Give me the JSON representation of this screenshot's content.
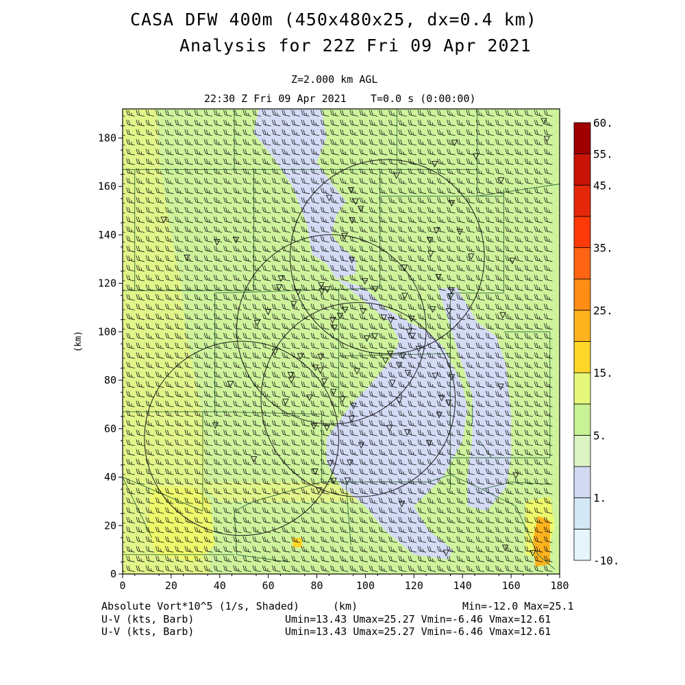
{
  "header": {
    "title_line1": "CASA DFW 400m (450x480x25, dx=0.4 km)",
    "title_line2": "Analysis for 22Z Fri 09 Apr 2021",
    "level": "Z=2.000 km AGL",
    "valid_time": "22:30 Z Fri 09 Apr 2021",
    "forecast_time": "T=0.0 s (0:00:00)"
  },
  "footer": {
    "shaded_field": "Absolute Vort*10^5 (1/s, Shaded)",
    "x_unit": "(km)",
    "min_max": "Min=-12.0 Max=25.1",
    "barb_label_1": "U-V (kts, Barb)",
    "barb_stats_1": "Umin=13.43 Umax=25.27 Vmin=-6.46 Vmax=12.61",
    "barb_label_2": "U-V (kts, Barb)",
    "barb_stats_2": "Umin=13.43 Umax=25.27 Vmin=-6.46 Vmax=12.61"
  },
  "chart_data": {
    "type": "heatmap",
    "field": "Absolute Vort*10^5 (1/s)",
    "xlabel": "(km)",
    "ylabel": "(km)",
    "xlim": [
      0,
      180
    ],
    "ylim": [
      0,
      192
    ],
    "x_ticks": [
      "0",
      "20",
      "40",
      "60",
      "80",
      "100",
      "120",
      "140",
      "160",
      "180"
    ],
    "y_ticks": [
      "0",
      "20",
      "40",
      "60",
      "80",
      "100",
      "120",
      "140",
      "160",
      "180"
    ],
    "color_scale": {
      "labels": [
        "-10.",
        "1.",
        "5.",
        "15.",
        "25.",
        "35.",
        "45.",
        "55.",
        "60."
      ],
      "colors": [
        "#e6f5fb",
        "#d4e8f5",
        "#d2d9f2",
        "#dcf3c4",
        "#c8f296",
        "#e6f87a",
        "#ffd62a",
        "#ffb31e",
        "#ff8c14",
        "#ff6414",
        "#ff3a0a",
        "#e6280a",
        "#c81406",
        "#a00000"
      ]
    },
    "regions": [
      {
        "value": 8,
        "color": "#cef39c",
        "polygon": [
          [
            0,
            0
          ],
          [
            180,
            0
          ],
          [
            180,
            192
          ],
          [
            0,
            192
          ]
        ]
      },
      {
        "value": 12,
        "color": "#e1f58a",
        "polygon": [
          [
            0,
            192
          ],
          [
            0,
            0
          ],
          [
            36,
            0
          ],
          [
            34,
            32
          ],
          [
            34,
            58
          ],
          [
            30,
            80
          ],
          [
            26,
            100
          ],
          [
            24,
            120
          ],
          [
            20,
            140
          ],
          [
            16,
            165
          ],
          [
            14,
            192
          ]
        ]
      },
      {
        "value": 12,
        "color": "#e1f58a",
        "polygon": [
          [
            30,
            38
          ],
          [
            100,
            38
          ],
          [
            100,
            30
          ],
          [
            40,
            30
          ]
        ]
      },
      {
        "value": 16,
        "color": "#eef96c",
        "polygon": [
          [
            12,
            36
          ],
          [
            30,
            36
          ],
          [
            36,
            30
          ],
          [
            38,
            12
          ],
          [
            30,
            5
          ],
          [
            14,
            8
          ],
          [
            10,
            18
          ]
        ]
      },
      {
        "value": 16,
        "color": "#eef96c",
        "polygon": [
          [
            166,
            30
          ],
          [
            176,
            32
          ],
          [
            178,
            20
          ],
          [
            174,
            6
          ],
          [
            166,
            8
          ]
        ]
      },
      {
        "value": 25,
        "color": "#ffb31e",
        "polygon": [
          [
            171,
            24
          ],
          [
            176,
            22
          ],
          [
            176,
            4
          ],
          [
            170,
            3
          ],
          [
            169,
            14
          ]
        ]
      },
      {
        "value": 25,
        "color": "#ffd62a",
        "polygon": [
          [
            70,
            15
          ],
          [
            74,
            15
          ],
          [
            74,
            11
          ],
          [
            70,
            11
          ]
        ]
      },
      {
        "value": 2,
        "color": "#d4dbf5",
        "polygon": [
          [
            56,
            192
          ],
          [
            82,
            192
          ],
          [
            84,
            180
          ],
          [
            80,
            170
          ],
          [
            87,
            160
          ],
          [
            92,
            154
          ],
          [
            88,
            148
          ],
          [
            86,
            140
          ],
          [
            90,
            135
          ],
          [
            96,
            130
          ],
          [
            96,
            124
          ],
          [
            88,
            122
          ],
          [
            84,
            128
          ],
          [
            78,
            132
          ],
          [
            76,
            144
          ],
          [
            70,
            160
          ],
          [
            62,
            172
          ],
          [
            54,
            182
          ]
        ]
      },
      {
        "value": 2,
        "color": "#d4dbf5",
        "polygon": [
          [
            88,
            122
          ],
          [
            100,
            118
          ],
          [
            108,
            110
          ],
          [
            118,
            104
          ],
          [
            126,
            100
          ],
          [
            132,
            94
          ],
          [
            136,
            86
          ],
          [
            140,
            78
          ],
          [
            142,
            68
          ],
          [
            140,
            55
          ],
          [
            132,
            40
          ],
          [
            120,
            28
          ],
          [
            126,
            18
          ],
          [
            136,
            10
          ],
          [
            134,
            6
          ],
          [
            120,
            8
          ],
          [
            108,
            18
          ],
          [
            100,
            28
          ],
          [
            90,
            36
          ],
          [
            84,
            46
          ],
          [
            84,
            56
          ],
          [
            94,
            70
          ],
          [
            102,
            78
          ],
          [
            110,
            88
          ],
          [
            114,
            96
          ],
          [
            110,
            104
          ]
        ]
      },
      {
        "value": 2,
        "color": "#d4dbf5",
        "polygon": [
          [
            130,
            118
          ],
          [
            138,
            118
          ],
          [
            146,
            104
          ],
          [
            154,
            98
          ],
          [
            158,
            86
          ],
          [
            160,
            66
          ],
          [
            160,
            48
          ],
          [
            158,
            36
          ],
          [
            150,
            26
          ],
          [
            142,
            28
          ],
          [
            142,
            40
          ],
          [
            144,
            56
          ],
          [
            144,
            74
          ],
          [
            138,
            92
          ]
        ]
      }
    ],
    "range_circles": [
      {
        "center": [
          109,
          131
        ],
        "radius": 40
      },
      {
        "center": [
          86,
          101
        ],
        "radius": 39
      },
      {
        "center": [
          97,
          72
        ],
        "radius": 40
      },
      {
        "center": [
          49,
          56
        ],
        "radius": 40
      }
    ],
    "barb_grid_spacing_km": [
      4,
      4
    ],
    "stations_count": 105
  }
}
